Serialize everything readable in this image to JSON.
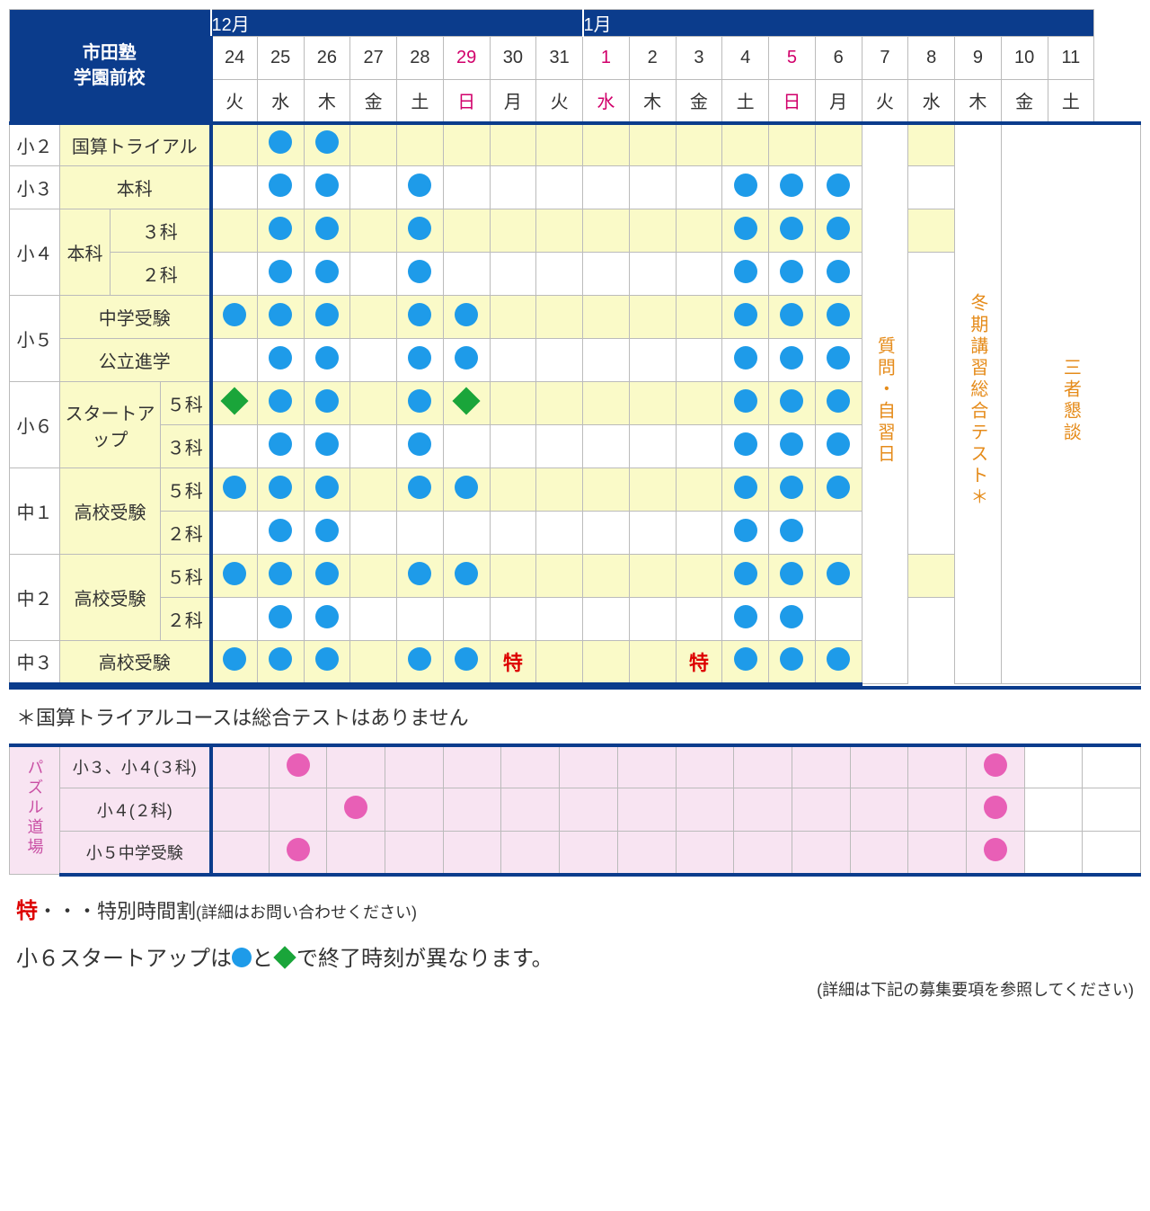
{
  "title_line1": "市田塾",
  "title_line2": "学園前校",
  "months": {
    "dec": "12月",
    "jan": "1月"
  },
  "days": [
    {
      "n": "24",
      "w": "火"
    },
    {
      "n": "25",
      "w": "水"
    },
    {
      "n": "26",
      "w": "木"
    },
    {
      "n": "27",
      "w": "金"
    },
    {
      "n": "28",
      "w": "土"
    },
    {
      "n": "29",
      "w": "日",
      "red": true
    },
    {
      "n": "30",
      "w": "月"
    },
    {
      "n": "31",
      "w": "火"
    },
    {
      "n": "1",
      "w": "水",
      "red": true
    },
    {
      "n": "2",
      "w": "木"
    },
    {
      "n": "3",
      "w": "金"
    },
    {
      "n": "4",
      "w": "土"
    },
    {
      "n": "5",
      "w": "日",
      "red": true
    },
    {
      "n": "6",
      "w": "月"
    },
    {
      "n": "7",
      "w": "火"
    },
    {
      "n": "8",
      "w": "水"
    },
    {
      "n": "9",
      "w": "木"
    },
    {
      "n": "10",
      "w": "金"
    },
    {
      "n": "11",
      "w": "土"
    }
  ],
  "grades": {
    "s2": "小２",
    "s3": "小３",
    "s4": "小４",
    "s5": "小５",
    "s6": "小６",
    "c1": "中１",
    "c2": "中２",
    "c3": "中３"
  },
  "courses": {
    "kokusan": "国算トライアル",
    "honka": "本科",
    "sanka": "３科",
    "nika": "２科",
    "goka": "５科",
    "chugaku": "中学受験",
    "koritsu": "公立進学",
    "startup": "スタートアップ",
    "koko": "高校受験"
  },
  "vertical_labels": {
    "qa_day": "質問・自習日",
    "winter_test": "冬期講習総合テスト＊",
    "sansha": "三者懇談",
    "puzzle": "パズル道場"
  },
  "special_mark": "特",
  "note_asterisk": "＊国算トライアルコースは総合テストはありません",
  "schedule": {
    "s2_kokusan": [
      "",
      "C",
      "C",
      "",
      "",
      "",
      "",
      "",
      "",
      "",
      "",
      "",
      "",
      "",
      "-",
      "",
      "-",
      "-",
      "-"
    ],
    "s3_honka": [
      "",
      "C",
      "C",
      "",
      "C",
      "",
      "",
      "",
      "",
      "",
      "",
      "C",
      "C",
      "C",
      "-",
      "",
      "-",
      "-",
      "-"
    ],
    "s4_3": [
      "",
      "C",
      "C",
      "",
      "C",
      "",
      "",
      "",
      "",
      "",
      "",
      "C",
      "C",
      "C",
      "-",
      "",
      "-",
      "-",
      "-"
    ],
    "s4_2": [
      "",
      "C",
      "C",
      "",
      "C",
      "",
      "",
      "",
      "",
      "",
      "",
      "C",
      "C",
      "C",
      "-",
      "-",
      "-",
      "-",
      "-"
    ],
    "s5_chugaku": [
      "C",
      "C",
      "C",
      "",
      "C",
      "C",
      "",
      "",
      "",
      "",
      "",
      "C",
      "C",
      "C",
      "-",
      "-",
      "-",
      "-",
      "-"
    ],
    "s5_koritsu": [
      "",
      "C",
      "C",
      "",
      "C",
      "C",
      "",
      "",
      "",
      "",
      "",
      "C",
      "C",
      "C",
      "-",
      "-",
      "-",
      "-",
      "-"
    ],
    "s6_startup_5": [
      "D",
      "C",
      "C",
      "",
      "C",
      "D",
      "",
      "",
      "",
      "",
      "",
      "C",
      "C",
      "C",
      "-",
      "-",
      "-",
      "-",
      "-"
    ],
    "s6_startup_3": [
      "",
      "C",
      "C",
      "",
      "C",
      "",
      "",
      "",
      "",
      "",
      "",
      "C",
      "C",
      "C",
      "-",
      "-",
      "-",
      "-",
      "-"
    ],
    "c1_koko_5": [
      "C",
      "C",
      "C",
      "",
      "C",
      "C",
      "",
      "",
      "",
      "",
      "",
      "C",
      "C",
      "C",
      "-",
      "-",
      "-",
      "-",
      "-"
    ],
    "c1_koko_2": [
      "",
      "C",
      "C",
      "",
      "",
      "",
      "",
      "",
      "",
      "",
      "",
      "C",
      "C",
      "",
      "-",
      "-",
      "-",
      "-",
      "-"
    ],
    "c2_koko_5": [
      "C",
      "C",
      "C",
      "",
      "C",
      "C",
      "",
      "",
      "",
      "",
      "",
      "C",
      "C",
      "C",
      "-",
      "",
      "-",
      "-",
      "-"
    ],
    "c2_koko_2": [
      "",
      "C",
      "C",
      "",
      "",
      "",
      "",
      "",
      "",
      "",
      "",
      "C",
      "C",
      "",
      "-",
      "-",
      "-",
      "-",
      "-"
    ],
    "c3_koko": [
      "C",
      "C",
      "C",
      "",
      "C",
      "C",
      "S",
      "",
      "",
      "",
      "S",
      "C",
      "C",
      "C",
      "-",
      "-",
      "-",
      "-",
      "-"
    ]
  },
  "row_bg": {
    "s2_kokusan": [
      1,
      1,
      1,
      1,
      1,
      1,
      1,
      1,
      1,
      1,
      1,
      1,
      1,
      1,
      0,
      1,
      0,
      0,
      0
    ],
    "s3_honka": [
      0,
      0,
      0,
      0,
      0,
      0,
      0,
      0,
      0,
      0,
      0,
      0,
      0,
      0,
      0,
      0,
      0,
      0,
      0
    ],
    "s4_3": [
      1,
      1,
      1,
      1,
      1,
      1,
      1,
      1,
      1,
      1,
      1,
      1,
      1,
      1,
      0,
      1,
      0,
      0,
      0
    ],
    "s4_2": [
      0,
      0,
      0,
      0,
      0,
      0,
      0,
      0,
      0,
      0,
      0,
      0,
      0,
      0,
      0,
      0,
      0,
      0,
      0
    ],
    "s5_chugaku": [
      1,
      1,
      1,
      1,
      1,
      1,
      1,
      1,
      1,
      1,
      1,
      1,
      1,
      1,
      0,
      0,
      0,
      0,
      0
    ],
    "s5_koritsu": [
      0,
      0,
      0,
      0,
      0,
      0,
      0,
      0,
      0,
      0,
      0,
      0,
      0,
      0,
      0,
      0,
      0,
      0,
      0
    ],
    "s6_startup_5": [
      1,
      1,
      1,
      1,
      1,
      1,
      1,
      1,
      1,
      1,
      1,
      1,
      1,
      1,
      0,
      0,
      0,
      0,
      0
    ],
    "s6_startup_3": [
      0,
      0,
      0,
      0,
      0,
      0,
      0,
      0,
      0,
      0,
      0,
      0,
      0,
      0,
      0,
      0,
      0,
      0,
      0
    ],
    "c1_koko_5": [
      1,
      1,
      1,
      1,
      1,
      1,
      1,
      1,
      1,
      1,
      1,
      1,
      1,
      1,
      0,
      0,
      0,
      0,
      0
    ],
    "c1_koko_2": [
      0,
      0,
      0,
      0,
      0,
      0,
      0,
      0,
      0,
      0,
      0,
      0,
      0,
      0,
      0,
      0,
      0,
      0,
      0
    ],
    "c2_koko_5": [
      1,
      1,
      1,
      1,
      1,
      1,
      1,
      1,
      1,
      1,
      1,
      1,
      1,
      1,
      0,
      1,
      0,
      0,
      0
    ],
    "c2_koko_2": [
      0,
      0,
      0,
      0,
      0,
      0,
      0,
      0,
      0,
      0,
      0,
      0,
      0,
      0,
      0,
      0,
      0,
      0,
      0
    ],
    "c3_koko": [
      1,
      1,
      1,
      1,
      1,
      1,
      1,
      1,
      1,
      1,
      1,
      1,
      1,
      1,
      0,
      0,
      0,
      0,
      0
    ]
  },
  "puzzle_rows": [
    {
      "label": "小３、小４(３科)",
      "cells": [
        "",
        "P",
        "",
        "",
        "",
        "",
        "",
        "",
        "",
        "",
        "",
        "",
        "",
        "P",
        "",
        ""
      ]
    },
    {
      "label": "小４(２科)",
      "cells": [
        "",
        "",
        "P",
        "",
        "",
        "",
        "",
        "",
        "",
        "",
        "",
        "",
        "",
        "P",
        "",
        ""
      ]
    },
    {
      "label": "小５中学受験",
      "cells": [
        "",
        "P",
        "",
        "",
        "",
        "",
        "",
        "",
        "",
        "",
        "",
        "",
        "",
        "P",
        "",
        ""
      ]
    }
  ],
  "legend": {
    "special_prefix": "特",
    "special_dots": "・・・",
    "special_label": "特別時間割",
    "special_note": "(詳細はお問い合わせください)",
    "startup_text_a": "小６スタートアップは",
    "startup_text_b": "と",
    "startup_text_c": "で終了時刻が異なります。",
    "footnote": "(詳細は下記の募集要項を参照してください)"
  },
  "colors": {
    "navy": "#0b3c8c",
    "yellow_bg": "#fafac8",
    "blue_circle": "#1e9be9",
    "green_diamond": "#1aa53a",
    "orange_text": "#e58b1a",
    "pink_circle": "#e85fb6",
    "puzzle_bg": "#f8e4f2",
    "puzzle_label": "#c94fa4",
    "special_red": "#dd0000",
    "red_day": "#d1006b",
    "border_gray": "#bbbbbb"
  }
}
